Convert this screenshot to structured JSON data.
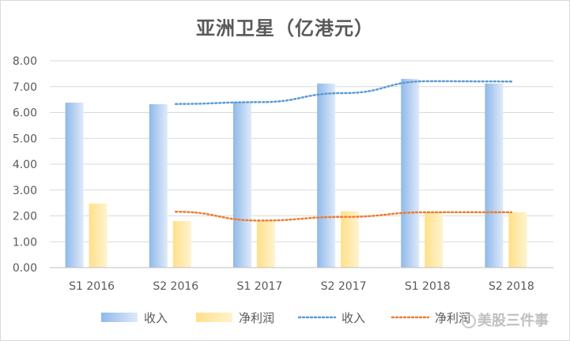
{
  "chart_data": {
    "type": "bar",
    "title": "亚洲卫星（亿港元）",
    "categories": [
      "S1 2016",
      "S2 2016",
      "S1 2017",
      "S2 2017",
      "S1 2018",
      "S2 2018"
    ],
    "series": [
      {
        "name": "收入",
        "kind": "bar",
        "values": [
          6.38,
          6.32,
          6.41,
          7.12,
          7.3,
          7.12
        ],
        "color": "#9dc3e6"
      },
      {
        "name": "净利润",
        "kind": "bar",
        "values": [
          2.48,
          1.8,
          1.79,
          2.18,
          2.16,
          2.14
        ],
        "color": "#ffe699"
      },
      {
        "name": "收入",
        "kind": "trendline",
        "values": [
          null,
          6.33,
          6.4,
          6.75,
          7.21,
          7.2
        ],
        "color": "#5b9bd5"
      },
      {
        "name": "净利润",
        "kind": "trendline",
        "values": [
          null,
          2.16,
          1.82,
          1.96,
          2.14,
          2.14
        ],
        "color": "#ed7d31"
      }
    ],
    "ylim": [
      0,
      8
    ],
    "yticks": [
      "0.00",
      "1.00",
      "2.00",
      "3.00",
      "4.00",
      "5.00",
      "6.00",
      "7.00",
      "8.00"
    ],
    "grid": true,
    "legend_position": "bottom"
  },
  "watermark": "美股三件事"
}
